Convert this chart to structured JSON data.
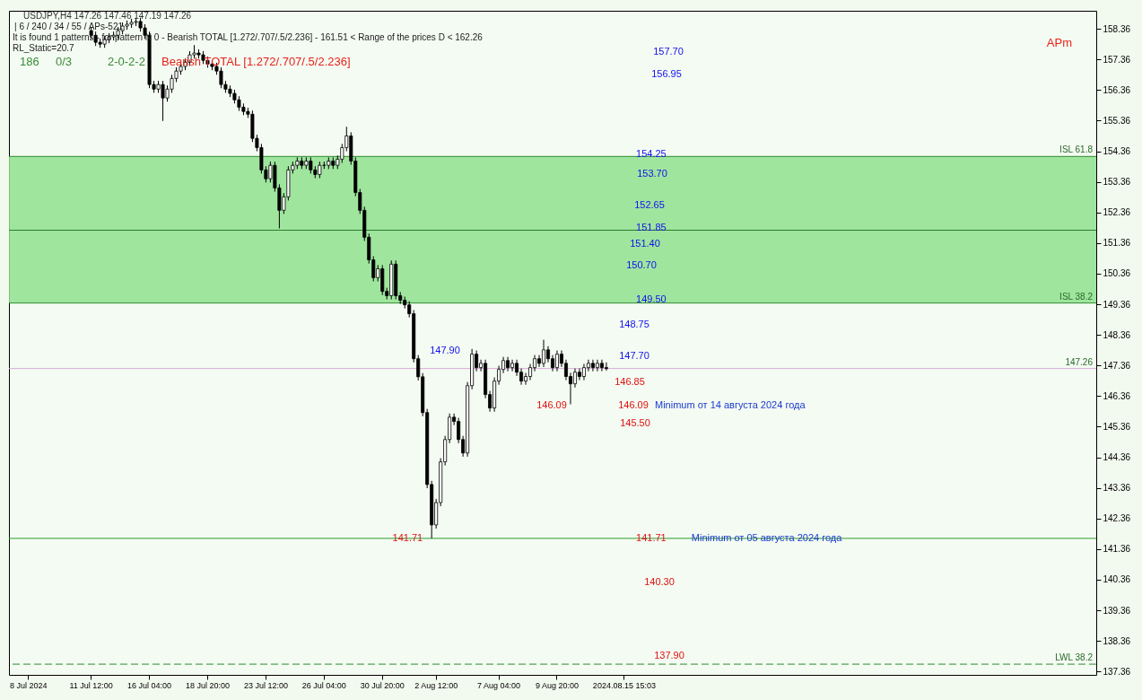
{
  "chart_data": {
    "type": "candlestick",
    "categories": [
      null,
      null,
      null,
      null,
      "8 Jul 2024",
      null,
      null,
      null,
      null,
      null,
      null,
      null,
      null,
      null,
      null,
      null,
      null,
      null,
      "11 Jul 12:00",
      null,
      null,
      null,
      null,
      null,
      null,
      null,
      null,
      null,
      null,
      null,
      null,
      "16 Jul 04:00",
      null,
      null,
      null,
      null,
      null,
      null,
      null,
      null,
      null,
      null,
      null,
      null,
      "18 Jul 20:00",
      null,
      null,
      null,
      null,
      null,
      null,
      null,
      null,
      null,
      null,
      null,
      null,
      "23 Jul 12:00",
      null,
      null,
      null,
      null,
      null,
      null,
      null,
      null,
      null,
      null,
      null,
      null,
      "26 Jul 04:00",
      null,
      null,
      null,
      null,
      null,
      null,
      null,
      null,
      null,
      null,
      null,
      null,
      "30 Jul 20:00",
      null,
      null,
      null,
      null,
      null,
      null,
      null,
      null,
      null,
      null,
      null,
      "2 Aug 12:00",
      null,
      null,
      null,
      null,
      null,
      null,
      null,
      null,
      null,
      null,
      null,
      null,
      null,
      "7 Aug 04:00",
      null,
      null,
      null,
      null,
      null,
      null,
      null,
      null,
      null,
      null,
      null,
      null,
      "9 Aug 20:00",
      null,
      null,
      null,
      null,
      null,
      null,
      null,
      null,
      null,
      null,
      null,
      null,
      null,
      null,
      "2024.08.15 15:03",
      null,
      null,
      null,
      null,
      null,
      null,
      null,
      null,
      null,
      null,
      null,
      null,
      null,
      null,
      null,
      null,
      null,
      null,
      null,
      null,
      null,
      null,
      null,
      null,
      null,
      null,
      null,
      null,
      null,
      null,
      null,
      null,
      null,
      null,
      null,
      null,
      null,
      null,
      null,
      null,
      null,
      null,
      null,
      null,
      null,
      null,
      null,
      null,
      null,
      null,
      null,
      null,
      null,
      null,
      null,
      null,
      null,
      null,
      null,
      null,
      null,
      null,
      null,
      null,
      null,
      null,
      null,
      null,
      null,
      null,
      null,
      null,
      null,
      null,
      null,
      null,
      null,
      null,
      null,
      null,
      null,
      null,
      null,
      null,
      null,
      null,
      null,
      null,
      null,
      null,
      null,
      null,
      null,
      null,
      null,
      null,
      null,
      null,
      null,
      null,
      null,
      null,
      null,
      null,
      null
    ],
    "ohlc": [
      null,
      null,
      null,
      null,
      null,
      null,
      null,
      null,
      null,
      null,
      null,
      null,
      null,
      null,
      null,
      null,
      null,
      null,
      [
        158.3,
        158.42,
        158.03,
        158.15
      ],
      [
        158.15,
        158.27,
        157.8,
        157.92
      ],
      [
        157.92,
        158.04,
        157.74,
        157.86
      ],
      [
        157.86,
        158.13,
        157.74,
        158.01
      ],
      [
        158.01,
        158.22,
        157.89,
        158.1
      ],
      [
        158.1,
        158.27,
        157.98,
        158.15
      ],
      [
        158.15,
        158.42,
        158.03,
        158.3
      ],
      [
        158.3,
        158.57,
        158.18,
        158.45
      ],
      [
        158.45,
        158.63,
        158.33,
        158.51
      ],
      [
        158.51,
        158.69,
        158.39,
        158.57
      ],
      [
        158.57,
        158.72,
        158.45,
        158.6
      ],
      [
        158.6,
        158.72,
        158.27,
        158.39
      ],
      [
        158.39,
        158.51,
        158.03,
        158.15
      ],
      [
        158.15,
        158.27,
        156.42,
        156.54
      ],
      [
        156.54,
        156.66,
        156.27,
        156.39
      ],
      [
        156.39,
        156.66,
        156.27,
        156.54
      ],
      [
        156.54,
        156.66,
        155.35,
        156.1
      ],
      [
        156.1,
        156.51,
        155.98,
        156.39
      ],
      [
        156.39,
        156.86,
        156.27,
        156.74
      ],
      [
        156.74,
        157.1,
        156.62,
        156.98
      ],
      [
        156.98,
        157.25,
        156.86,
        157.13
      ],
      [
        157.13,
        157.39,
        157.01,
        157.27
      ],
      [
        157.27,
        157.63,
        157.15,
        157.51
      ],
      [
        157.51,
        157.83,
        157.39,
        157.57
      ],
      [
        157.57,
        157.69,
        157.39,
        157.51
      ],
      [
        157.51,
        157.63,
        157.21,
        157.33
      ],
      [
        157.33,
        157.45,
        157.09,
        157.21
      ],
      [
        157.21,
        157.33,
        157.01,
        157.13
      ],
      [
        157.13,
        157.25,
        156.86,
        156.98
      ],
      [
        156.98,
        157.1,
        156.42,
        156.54
      ],
      [
        156.54,
        156.66,
        156.27,
        156.39
      ],
      [
        156.39,
        156.51,
        156.13,
        156.25
      ],
      [
        156.25,
        156.37,
        155.92,
        156.04
      ],
      [
        156.04,
        156.16,
        155.68,
        155.8
      ],
      [
        155.8,
        155.92,
        155.54,
        155.66
      ],
      [
        155.66,
        155.78,
        155.45,
        155.57
      ],
      [
        155.57,
        155.69,
        154.66,
        154.78
      ],
      [
        154.78,
        154.9,
        154.36,
        154.48
      ],
      [
        154.48,
        154.6,
        153.63,
        153.75
      ],
      [
        153.75,
        153.87,
        153.34,
        153.46
      ],
      [
        153.46,
        154.02,
        153.34,
        153.9
      ],
      [
        153.9,
        154.02,
        153.04,
        153.16
      ],
      [
        153.16,
        153.28,
        151.84,
        152.43
      ],
      [
        152.43,
        152.99,
        152.31,
        152.87
      ],
      [
        152.87,
        153.87,
        152.75,
        153.75
      ],
      [
        153.75,
        154.02,
        153.63,
        153.9
      ],
      [
        153.9,
        154.16,
        153.78,
        154.04
      ],
      [
        154.04,
        154.16,
        153.78,
        153.9
      ],
      [
        153.9,
        154.16,
        153.78,
        154.04
      ],
      [
        154.04,
        154.16,
        153.63,
        153.75
      ],
      [
        153.75,
        153.87,
        153.48,
        153.6
      ],
      [
        153.6,
        154.02,
        153.48,
        153.9
      ],
      [
        153.9,
        154.02,
        153.78,
        153.9
      ],
      [
        153.9,
        154.16,
        153.78,
        154.04
      ],
      [
        154.04,
        154.16,
        153.78,
        153.9
      ],
      [
        153.9,
        154.22,
        153.78,
        154.1
      ],
      [
        154.1,
        154.6,
        153.98,
        154.48
      ],
      [
        154.48,
        155.16,
        154.36,
        154.86
      ],
      [
        154.86,
        154.98,
        153.92,
        154.04
      ],
      [
        154.04,
        154.16,
        152.89,
        153.01
      ],
      [
        153.01,
        153.13,
        152.31,
        152.43
      ],
      [
        152.43,
        152.55,
        151.43,
        151.55
      ],
      [
        151.55,
        151.67,
        150.69,
        150.81
      ],
      [
        150.81,
        150.93,
        150.11,
        150.23
      ],
      [
        150.23,
        150.64,
        150.11,
        150.52
      ],
      [
        150.52,
        150.64,
        149.66,
        149.78
      ],
      [
        149.78,
        149.9,
        149.52,
        149.64
      ],
      [
        149.64,
        150.79,
        149.52,
        150.67
      ],
      [
        150.67,
        150.79,
        149.52,
        149.64
      ],
      [
        149.64,
        149.76,
        149.37,
        149.49
      ],
      [
        149.49,
        149.61,
        149.22,
        149.34
      ],
      [
        149.34,
        149.46,
        148.93,
        149.05
      ],
      [
        149.05,
        149.17,
        147.46,
        147.58
      ],
      [
        147.58,
        147.7,
        146.87,
        146.99
      ],
      [
        146.99,
        147.11,
        145.7,
        145.82
      ],
      [
        145.82,
        145.94,
        143.35,
        143.47
      ],
      [
        143.47,
        143.59,
        141.71,
        142.15
      ],
      [
        142.15,
        143.0,
        142.03,
        142.88
      ],
      [
        142.88,
        144.33,
        142.76,
        144.21
      ],
      [
        144.21,
        145.06,
        144.09,
        144.94
      ],
      [
        144.94,
        145.79,
        144.82,
        145.67
      ],
      [
        145.67,
        145.79,
        145.41,
        145.53
      ],
      [
        145.53,
        145.65,
        144.82,
        144.94
      ],
      [
        144.94,
        145.06,
        144.38,
        144.5
      ],
      [
        144.5,
        146.82,
        144.38,
        146.7
      ],
      [
        146.7,
        147.9,
        146.58,
        147.73
      ],
      [
        147.73,
        147.85,
        147.17,
        147.29
      ],
      [
        147.29,
        147.55,
        147.17,
        147.43
      ],
      [
        147.43,
        147.55,
        146.29,
        146.41
      ],
      [
        146.41,
        146.53,
        145.85,
        145.97
      ],
      [
        145.97,
        146.97,
        145.85,
        146.85
      ],
      [
        146.85,
        147.35,
        146.73,
        147.23
      ],
      [
        147.23,
        147.64,
        147.11,
        147.52
      ],
      [
        147.52,
        147.64,
        147.17,
        147.29
      ],
      [
        147.29,
        147.55,
        147.17,
        147.43
      ],
      [
        147.43,
        147.55,
        147.02,
        147.14
      ],
      [
        147.14,
        147.26,
        146.73,
        146.85
      ],
      [
        146.85,
        147.12,
        146.73,
        147.0
      ],
      [
        147.0,
        147.41,
        146.88,
        147.29
      ],
      [
        147.29,
        147.7,
        147.17,
        147.58
      ],
      [
        147.58,
        147.7,
        147.31,
        147.43
      ],
      [
        147.43,
        148.2,
        147.31,
        147.87
      ],
      [
        147.87,
        147.99,
        147.46,
        147.58
      ],
      [
        147.58,
        147.7,
        147.17,
        147.29
      ],
      [
        147.29,
        147.85,
        147.17,
        147.73
      ],
      [
        147.73,
        147.85,
        147.31,
        147.43
      ],
      [
        147.43,
        147.55,
        146.88,
        147.0
      ],
      [
        147.0,
        147.12,
        146.09,
        146.76
      ],
      [
        146.76,
        147.26,
        146.64,
        147.14
      ],
      [
        147.14,
        147.26,
        146.88,
        147.0
      ],
      [
        147.0,
        147.41,
        146.88,
        147.29
      ],
      [
        147.29,
        147.55,
        147.17,
        147.43
      ],
      [
        147.43,
        147.55,
        147.17,
        147.29
      ],
      [
        147.29,
        147.55,
        147.17,
        147.43
      ],
      [
        147.43,
        147.55,
        147.17,
        147.29
      ],
      [
        147.29,
        147.46,
        147.19,
        147.26
      ],
      null,
      null,
      null,
      null,
      null,
      null,
      null,
      null,
      null,
      null,
      null,
      null,
      null,
      null,
      null,
      null,
      null,
      null,
      null,
      null,
      null,
      null,
      null,
      null,
      null,
      null,
      null,
      null,
      null,
      null,
      null,
      null,
      null,
      null,
      null,
      null,
      null,
      null,
      null,
      null,
      null,
      null,
      null,
      null,
      null,
      null,
      null,
      null,
      null,
      null,
      null,
      null,
      null,
      null,
      null,
      null,
      null,
      null,
      null,
      null,
      null,
      null,
      null,
      null,
      null,
      null,
      null,
      null,
      null,
      null,
      null,
      null,
      null,
      null,
      null,
      null,
      null,
      null,
      null,
      null,
      null,
      null,
      null,
      null,
      null,
      null,
      null,
      null,
      null,
      null,
      null,
      null,
      null,
      null,
      null,
      null,
      null,
      null,
      null,
      null,
      null,
      null,
      null,
      null,
      null,
      null,
      null,
      null,
      null
    ],
    "ylim": [
      137.25,
      158.95
    ],
    "yticks": [
      137.36,
      138.36,
      139.36,
      140.36,
      141.36,
      142.36,
      143.36,
      144.36,
      145.36,
      146.36,
      147.36,
      148.36,
      149.36,
      150.36,
      151.36,
      152.36,
      153.36,
      154.36,
      155.36,
      156.36,
      157.36,
      158.36
    ],
    "bands": [
      {
        "axis": "y",
        "from": 149.4,
        "to": 154.19,
        "color": "#8fe08f"
      }
    ],
    "ref_lines": [
      {
        "axis": "y",
        "value": 154.19,
        "label": "ISL 61.8",
        "color": "#2e8b2e"
      },
      {
        "axis": "y",
        "value": 149.4,
        "label": "ISL 38.2",
        "color": "#2e8b2e"
      },
      {
        "axis": "y",
        "value": 151.78,
        "color": "#2e7d2e"
      },
      {
        "axis": "y",
        "value": 141.71,
        "color": "#2e9b2e"
      },
      {
        "axis": "y",
        "value": 137.6,
        "label": "LWL 38.2",
        "color": "#2e8b2e",
        "line_style": "dashed"
      },
      {
        "axis": "y",
        "value": 147.26,
        "label": "147.26",
        "color": "#d9a8d9"
      }
    ],
    "annotations": [
      "USDJPY,H4 147.26 147.46 147.19 147.26",
      "| 6 / 240 / 34 / 55 / APs-521",
      "It is found 1 patterns - for pattern N 0 - Bearish TOTAL [1.272/.707/.5/2.236] - 161.51 < Range of the prices D < 162.26",
      "RL_Static=20.7",
      "186",
      "0/3",
      "2-0-2-2",
      "Bearish TOTAL [1.272/.707/.5/2.236]",
      "APm",
      "157.70",
      "156.95",
      "153.70",
      "152.65",
      "151.40",
      "150.70",
      "148.75",
      "147.90",
      "146.85",
      "146.09",
      "Minimum от 14 августа 2024 года",
      "145.50",
      "140.30",
      "137.90",
      "147.70",
      "146.09",
      {
        "text": "154.25",
        "y": 154.25
      },
      {
        "text": "151.85",
        "y": 151.85
      },
      {
        "text": "149.50",
        "y": 149.5
      },
      {
        "text": "141.71",
        "y": 141.71
      },
      {
        "text": "141.71",
        "y": 141.71
      },
      {
        "text": "Minimum от 05 августа 2024 года",
        "y": 141.71
      }
    ]
  }
}
